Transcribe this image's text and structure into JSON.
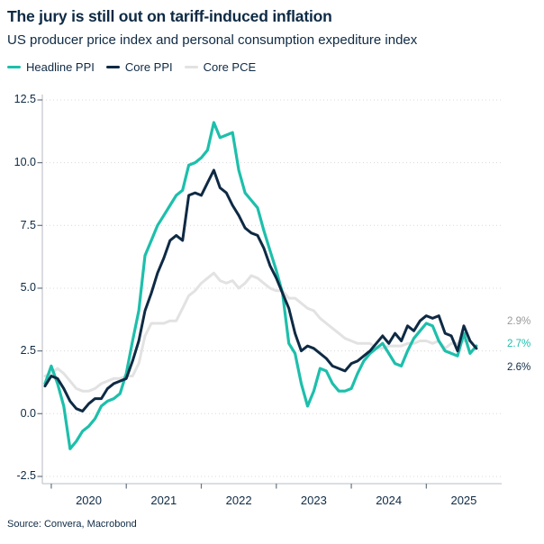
{
  "header": {
    "title": "The jury is still out on tariff-induced inflation",
    "subtitle": "US producer price index and personal consumption expediture index"
  },
  "legend": {
    "items": [
      {
        "label": "Headline PPI",
        "color": "#1dbfab"
      },
      {
        "label": "Core PPI",
        "color": "#0e2a44"
      },
      {
        "label": "Core PCE",
        "color": "#e2e2e2"
      }
    ]
  },
  "source": "Source: Convera, Macrobond",
  "colors": {
    "text_navy": "#0e2a44",
    "grid": "#d8d8d8",
    "axis": "#c5cad0",
    "tick": "#66737f",
    "end_label_gray": "#9a9a9a"
  },
  "chart_data": {
    "type": "line",
    "title": "The jury is still out on tariff-induced inflation",
    "subtitle": "US producer price index and personal consumption expediture index",
    "frequency": "monthly",
    "start_month": "2019-12",
    "x_tick_labels": [
      "2020",
      "2021",
      "2022",
      "2023",
      "2024",
      "2025"
    ],
    "y_ticks": [
      12.5,
      10.0,
      7.5,
      5.0,
      2.5,
      0.0,
      -2.5
    ],
    "ylim": [
      -2.5,
      12.5
    ],
    "grid": "dotted-horizontal",
    "legend_position": "top-left",
    "series": [
      {
        "name": "Headline PPI",
        "color": "#1dbfab",
        "end_label": "2.7%",
        "values": [
          1.2,
          1.9,
          1.2,
          0.3,
          -1.4,
          -1.1,
          -0.7,
          -0.5,
          -0.2,
          0.3,
          0.5,
          0.6,
          0.8,
          1.6,
          2.9,
          4.1,
          6.3,
          6.9,
          7.5,
          7.9,
          8.3,
          8.7,
          8.9,
          9.9,
          10.0,
          10.2,
          10.5,
          11.6,
          11.0,
          11.1,
          11.2,
          9.7,
          8.8,
          8.5,
          8.2,
          7.3,
          6.5,
          5.7,
          4.8,
          2.8,
          2.4,
          1.2,
          0.3,
          0.9,
          1.8,
          1.7,
          1.2,
          0.9,
          0.9,
          1.0,
          1.6,
          2.1,
          2.4,
          2.6,
          2.8,
          2.4,
          2.0,
          1.9,
          2.5,
          3.0,
          3.3,
          3.6,
          3.5,
          2.9,
          2.5,
          2.4,
          2.3,
          3.2,
          2.4,
          2.7
        ]
      },
      {
        "name": "Core PPI",
        "color": "#0e2a44",
        "end_label": "2.6%",
        "values": [
          1.1,
          1.5,
          1.4,
          1.0,
          0.5,
          0.2,
          0.1,
          0.4,
          0.6,
          0.6,
          1.0,
          1.2,
          1.3,
          1.4,
          2.1,
          2.9,
          4.1,
          4.8,
          5.6,
          6.2,
          6.9,
          7.1,
          6.9,
          8.7,
          8.8,
          8.7,
          9.2,
          9.7,
          9.0,
          8.8,
          8.3,
          7.9,
          7.4,
          7.2,
          7.1,
          6.6,
          5.9,
          5.4,
          4.8,
          4.2,
          3.2,
          2.5,
          2.7,
          2.6,
          2.4,
          2.2,
          1.9,
          1.8,
          1.7,
          2.0,
          2.1,
          2.3,
          2.5,
          2.8,
          3.1,
          2.8,
          3.2,
          2.9,
          3.5,
          3.3,
          3.7,
          3.9,
          3.8,
          3.9,
          3.2,
          3.1,
          2.5,
          3.5,
          2.9,
          2.6
        ]
      },
      {
        "name": "Core PCE",
        "color": "#e2e2e2",
        "end_label": "2.9%",
        "values": [
          1.5,
          1.6,
          1.8,
          1.6,
          1.3,
          1.0,
          0.9,
          0.9,
          1.0,
          1.2,
          1.3,
          1.4,
          1.4,
          1.5,
          1.5,
          2.0,
          3.1,
          3.6,
          3.6,
          3.6,
          3.7,
          3.7,
          4.2,
          4.7,
          4.9,
          5.2,
          5.4,
          5.6,
          5.3,
          5.2,
          5.3,
          5.0,
          5.2,
          5.5,
          5.4,
          5.2,
          5.0,
          4.9,
          4.9,
          4.6,
          4.6,
          4.4,
          4.2,
          4.1,
          3.8,
          3.6,
          3.4,
          3.2,
          3.0,
          2.9,
          2.8,
          2.8,
          2.8,
          2.6,
          2.6,
          2.7,
          2.7,
          2.7,
          2.8,
          2.8,
          2.9,
          2.9,
          2.8,
          2.9,
          2.6,
          2.8,
          2.8,
          2.9,
          2.9
        ]
      }
    ],
    "end_labels": [
      {
        "text": "2.9%",
        "series": "Core PCE",
        "color": "#9a9a9a",
        "y": 358
      },
      {
        "text": "2.7%",
        "series": "Headline PPI",
        "color": "#1dbfab",
        "y": 383
      },
      {
        "text": "2.6%",
        "series": "Core PPI",
        "color": "#0e2a44",
        "y": 409
      }
    ]
  }
}
